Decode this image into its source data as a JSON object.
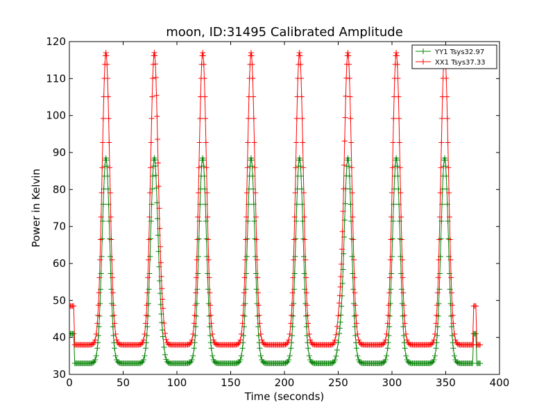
{
  "chart_data": {
    "type": "line",
    "title": "moon, ID:31495 Calibrated Amplitude",
    "xlabel": "Time (seconds)",
    "ylabel": "Power in Kelvin",
    "xlim": [
      0,
      400
    ],
    "ylim": [
      30,
      120
    ],
    "xticks": [
      0,
      50,
      100,
      150,
      200,
      250,
      300,
      350,
      400
    ],
    "yticks": [
      30,
      40,
      50,
      60,
      70,
      80,
      90,
      100,
      110,
      120
    ],
    "grid": false,
    "legend_position": "top-right",
    "marker": "plus",
    "x_range": [
      0,
      382
    ],
    "peak_centers": [
      34,
      79,
      124,
      169,
      214,
      259,
      304,
      349
    ],
    "peak_halfwidth_s": 3.5,
    "series": [
      {
        "name": "YY1 Tsys32.97",
        "color": "#008000",
        "baseline": 33,
        "peak": 88.5,
        "start_segment": {
          "x": [
            0,
            4
          ],
          "value": 41
        },
        "end_segment": {
          "x": [
            376,
            378
          ],
          "value": 41
        },
        "end_value": 33,
        "bumps": [
          {
            "center": 86,
            "height": 3.5
          },
          {
            "center": 251,
            "height": 4
          }
        ]
      },
      {
        "name": "XX1 Tsys37.33",
        "color": "#ff0000",
        "baseline": 38,
        "peak": 117,
        "start_segment": {
          "x": [
            0,
            4
          ],
          "value": 48.5
        },
        "end_segment": {
          "x": [
            376,
            378
          ],
          "value": 48.5
        },
        "end_value": 38,
        "bumps": [
          {
            "center": 86,
            "height": 4.5
          },
          {
            "center": 251,
            "height": 5.5
          }
        ]
      }
    ]
  }
}
